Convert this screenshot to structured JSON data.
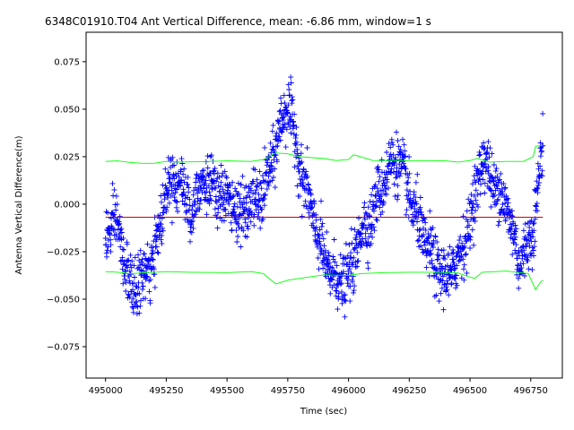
{
  "chart_data": {
    "type": "scatter",
    "title": "6348C01910.T04 Ant Vertical Difference, mean: -6.86 mm, window=1 s",
    "xlabel": "Time (sec)",
    "ylabel": "Antenna Vertical Difference(m)",
    "xlim": [
      494920,
      496880
    ],
    "ylim": [
      -0.0915,
      0.0905
    ],
    "xticks": [
      495000,
      495250,
      495500,
      495750,
      496000,
      496250,
      496500,
      496750
    ],
    "yticks": [
      -0.075,
      -0.05,
      -0.025,
      0.0,
      0.025,
      0.05,
      0.075
    ],
    "xtick_labels": [
      "495000",
      "495250",
      "495500",
      "495750",
      "496000",
      "496250",
      "496500",
      "496750"
    ],
    "ytick_labels": [
      "−0.075",
      "−0.050",
      "−0.025",
      "0.000",
      "0.025",
      "0.050",
      "0.075"
    ],
    "mean": -0.00686,
    "x_range": [
      495000,
      496800
    ],
    "series": [
      {
        "name": "vertical difference",
        "style": "plus",
        "color": "#0000ff",
        "trend": [
          [
            495000,
            -0.015
          ],
          [
            495050,
            -0.01
          ],
          [
            495100,
            -0.045
          ],
          [
            495150,
            -0.04
          ],
          [
            495200,
            -0.03
          ],
          [
            495250,
            0.01
          ],
          [
            495300,
            0.015
          ],
          [
            495350,
            -0.005
          ],
          [
            495400,
            0.015
          ],
          [
            495450,
            0.005
          ],
          [
            495500,
            0.003
          ],
          [
            495550,
            -0.005
          ],
          [
            495600,
            0.0
          ],
          [
            495650,
            0.005
          ],
          [
            495700,
            0.03
          ],
          [
            495750,
            0.055
          ],
          [
            495800,
            0.02
          ],
          [
            495850,
            -0.005
          ],
          [
            495900,
            -0.03
          ],
          [
            495950,
            -0.04
          ],
          [
            496000,
            -0.04
          ],
          [
            496050,
            -0.015
          ],
          [
            496100,
            -0.005
          ],
          [
            496150,
            0.015
          ],
          [
            496200,
            0.025
          ],
          [
            496250,
            0.005
          ],
          [
            496300,
            -0.015
          ],
          [
            496350,
            -0.03
          ],
          [
            496400,
            -0.04
          ],
          [
            496450,
            -0.03
          ],
          [
            496500,
            -0.01
          ],
          [
            496550,
            0.025
          ],
          [
            496600,
            0.01
          ],
          [
            496650,
            0.0
          ],
          [
            496700,
            -0.03
          ],
          [
            496750,
            -0.02
          ],
          [
            496800,
            0.03
          ]
        ]
      },
      {
        "name": "upper envelope",
        "style": "line",
        "color": "#00ff00",
        "points": [
          [
            495000,
            0.0225
          ],
          [
            495050,
            0.0228
          ],
          [
            495100,
            0.022
          ],
          [
            495150,
            0.0215
          ],
          [
            495200,
            0.0215
          ],
          [
            495250,
            0.0225
          ],
          [
            495300,
            0.0222
          ],
          [
            495400,
            0.0224
          ],
          [
            495500,
            0.0228
          ],
          [
            495600,
            0.0225
          ],
          [
            495650,
            0.0235
          ],
          [
            495700,
            0.027
          ],
          [
            495750,
            0.0265
          ],
          [
            495800,
            0.025
          ],
          [
            495900,
            0.024
          ],
          [
            495950,
            0.023
          ],
          [
            496000,
            0.0235
          ],
          [
            496020,
            0.026
          ],
          [
            496050,
            0.025
          ],
          [
            496100,
            0.023
          ],
          [
            496200,
            0.0228
          ],
          [
            496300,
            0.023
          ],
          [
            496400,
            0.0228
          ],
          [
            496450,
            0.0222
          ],
          [
            496500,
            0.023
          ],
          [
            496530,
            0.024
          ],
          [
            496580,
            0.0222
          ],
          [
            496650,
            0.0225
          ],
          [
            496720,
            0.0225
          ],
          [
            496760,
            0.025
          ],
          [
            496770,
            0.0305
          ],
          [
            496800,
            0.031
          ]
        ]
      },
      {
        "name": "lower envelope",
        "style": "line",
        "color": "#00ff00",
        "points": [
          [
            495000,
            -0.0355
          ],
          [
            495050,
            -0.0358
          ],
          [
            495100,
            -0.0365
          ],
          [
            495200,
            -0.0358
          ],
          [
            495250,
            -0.0355
          ],
          [
            495350,
            -0.0358
          ],
          [
            495500,
            -0.036
          ],
          [
            495600,
            -0.0355
          ],
          [
            495650,
            -0.0365
          ],
          [
            495700,
            -0.042
          ],
          [
            495750,
            -0.04
          ],
          [
            495800,
            -0.039
          ],
          [
            495900,
            -0.0372
          ],
          [
            496000,
            -0.0375
          ],
          [
            496050,
            -0.0365
          ],
          [
            496150,
            -0.036
          ],
          [
            496250,
            -0.0358
          ],
          [
            496350,
            -0.0358
          ],
          [
            496450,
            -0.0362
          ],
          [
            496490,
            -0.038
          ],
          [
            496520,
            -0.039
          ],
          [
            496550,
            -0.0358
          ],
          [
            496650,
            -0.0352
          ],
          [
            496740,
            -0.0365
          ],
          [
            496770,
            -0.045
          ],
          [
            496790,
            -0.041
          ],
          [
            496800,
            -0.04
          ]
        ]
      },
      {
        "name": "mean",
        "style": "line",
        "color": "#cc0000",
        "points": [
          [
            495000,
            -0.00686
          ],
          [
            496800,
            -0.00686
          ]
        ]
      }
    ]
  }
}
